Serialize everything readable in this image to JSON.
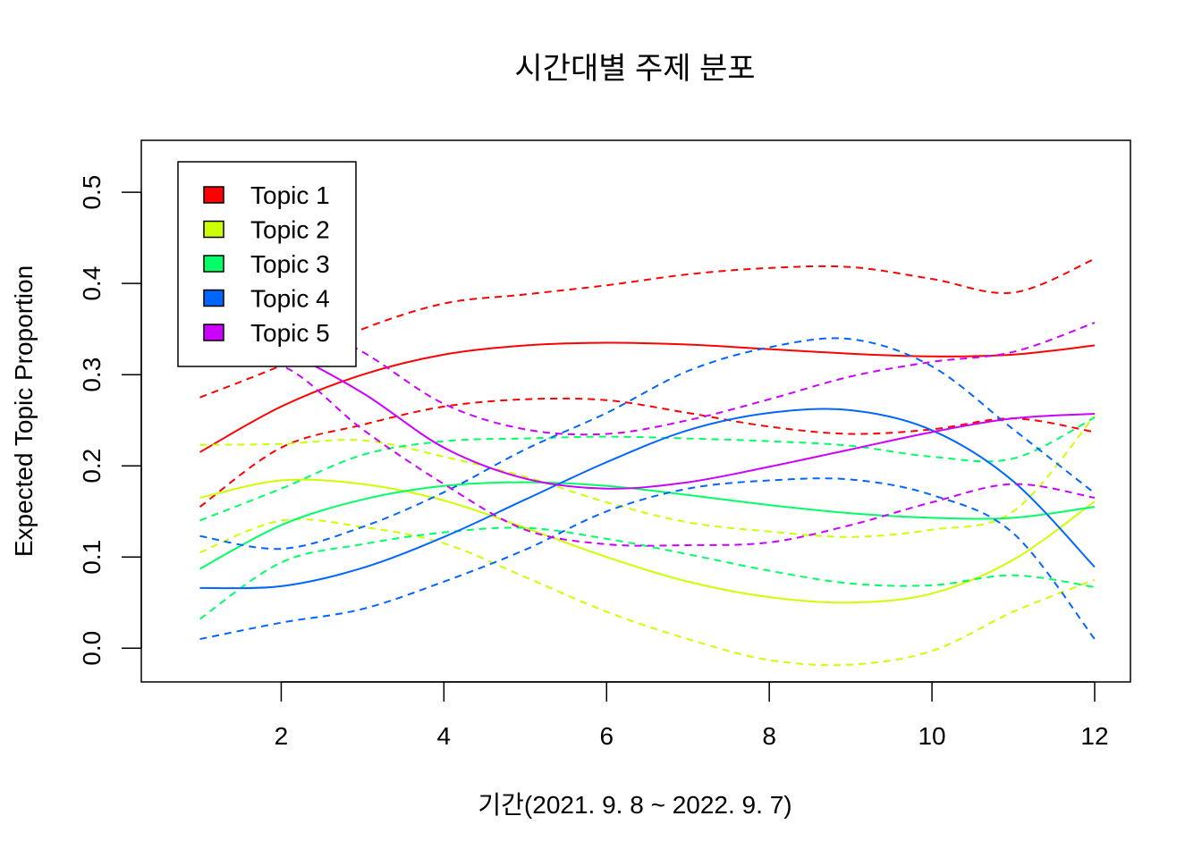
{
  "chart_data": {
    "type": "line",
    "title": "시간대별 주제 분포",
    "xlabel": "기간(2021. 9. 8 ~ 2022. 9. 7)",
    "ylabel": "Expected Topic Proportion",
    "xlim": [
      0.28,
      12.44
    ],
    "ylim": [
      -0.037,
      0.557
    ],
    "x_ticks": [
      2,
      4,
      6,
      8,
      10,
      12
    ],
    "x_tick_labels": [
      "2",
      "4",
      "6",
      "8",
      "10",
      "12"
    ],
    "y_ticks": [
      0.0,
      0.1,
      0.2,
      0.3,
      0.4,
      0.5
    ],
    "y_tick_labels": [
      "0.0",
      "0.1",
      "0.2",
      "0.3",
      "0.4",
      "0.5"
    ],
    "grid": false,
    "legend_position": "top-left",
    "x": [
      1,
      2,
      3,
      4,
      5,
      6,
      7,
      8,
      9,
      10,
      11,
      12
    ],
    "series": [
      {
        "name": "Topic 1",
        "color": "#FF0000",
        "mean": [
          0.215,
          0.265,
          0.3,
          0.322,
          0.332,
          0.335,
          0.333,
          0.328,
          0.323,
          0.32,
          0.322,
          0.332
        ],
        "upper": [
          0.275,
          0.31,
          0.35,
          0.378,
          0.388,
          0.398,
          0.41,
          0.417,
          0.418,
          0.405,
          0.39,
          0.427
        ],
        "lower": [
          0.155,
          0.22,
          0.245,
          0.265,
          0.273,
          0.272,
          0.258,
          0.243,
          0.235,
          0.24,
          0.252,
          0.237
        ]
      },
      {
        "name": "Topic 2",
        "color": "#CCFF00",
        "mean": [
          0.165,
          0.184,
          0.18,
          0.162,
          0.132,
          0.1,
          0.073,
          0.056,
          0.05,
          0.06,
          0.097,
          0.161
        ],
        "upper": [
          0.223,
          0.224,
          0.228,
          0.21,
          0.188,
          0.16,
          0.138,
          0.128,
          0.122,
          0.13,
          0.15,
          0.255
        ],
        "lower": [
          0.105,
          0.14,
          0.133,
          0.115,
          0.078,
          0.04,
          0.01,
          -0.013,
          -0.018,
          -0.003,
          0.04,
          0.075
        ]
      },
      {
        "name": "Topic 3",
        "color": "#00FF66",
        "mean": [
          0.087,
          0.135,
          0.163,
          0.178,
          0.182,
          0.178,
          0.168,
          0.157,
          0.148,
          0.143,
          0.143,
          0.155
        ],
        "upper": [
          0.14,
          0.175,
          0.212,
          0.227,
          0.23,
          0.232,
          0.23,
          0.227,
          0.222,
          0.21,
          0.208,
          0.253
        ],
        "lower": [
          0.032,
          0.094,
          0.114,
          0.127,
          0.132,
          0.12,
          0.103,
          0.085,
          0.071,
          0.069,
          0.08,
          0.067
        ]
      },
      {
        "name": "Topic 4",
        "color": "#0066FF",
        "mean": [
          0.066,
          0.068,
          0.088,
          0.122,
          0.163,
          0.204,
          0.239,
          0.258,
          0.261,
          0.239,
          0.183,
          0.089
        ],
        "upper": [
          0.123,
          0.109,
          0.133,
          0.171,
          0.218,
          0.258,
          0.304,
          0.33,
          0.339,
          0.309,
          0.24,
          0.17
        ],
        "lower": [
          0.01,
          0.028,
          0.043,
          0.073,
          0.108,
          0.15,
          0.175,
          0.184,
          0.185,
          0.168,
          0.126,
          0.01
        ]
      },
      {
        "name": "Topic 5",
        "color": "#CC00FF",
        "mean": [
          0.355,
          0.327,
          0.28,
          0.22,
          0.186,
          0.175,
          0.182,
          0.199,
          0.218,
          0.237,
          0.252,
          0.257
        ],
        "upper": [
          0.395,
          0.37,
          0.325,
          0.268,
          0.24,
          0.235,
          0.25,
          0.273,
          0.298,
          0.314,
          0.325,
          0.357
        ],
        "lower": [
          0.31,
          0.31,
          0.24,
          0.18,
          0.13,
          0.114,
          0.113,
          0.116,
          0.135,
          0.16,
          0.18,
          0.165
        ]
      }
    ]
  }
}
